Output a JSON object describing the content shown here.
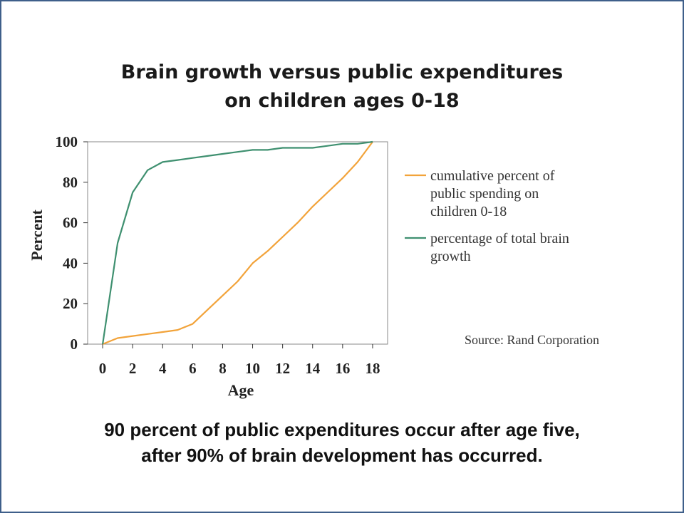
{
  "title_line1": "Brain growth versus public expenditures",
  "title_line2": "on children ages 0-18",
  "source": "Source: Rand Corporation",
  "footer_line1": "90 percent of  public expenditures occur after age five,",
  "footer_line2": "after 90% of brain development has occurred.",
  "chart_data": {
    "type": "line",
    "xlabel": "Age",
    "ylabel": "Percent",
    "xlim": [
      -1,
      19
    ],
    "ylim": [
      0,
      100
    ],
    "xticks": [
      0,
      2,
      4,
      6,
      8,
      10,
      12,
      14,
      16,
      18
    ],
    "yticks": [
      0,
      20,
      40,
      60,
      80,
      100
    ],
    "grid": false,
    "legend_position": "right",
    "series": [
      {
        "name": "cumulative percent of public spending on children 0-18",
        "legend_lines": [
          "cumulative percent of",
          "public spending on",
          "children 0-18"
        ],
        "color": "#f2a33a",
        "x": [
          0,
          1,
          2,
          3,
          4,
          5,
          6,
          7,
          8,
          9,
          10,
          11,
          12,
          13,
          14,
          15,
          16,
          17,
          18
        ],
        "y": [
          0,
          3,
          4,
          5,
          6,
          7,
          10,
          17,
          24,
          31,
          40,
          46,
          53,
          60,
          68,
          75,
          82,
          90,
          100
        ]
      },
      {
        "name": "percentage of total brain growth",
        "legend_lines": [
          "percentage of total brain",
          "growth"
        ],
        "color": "#3f9070",
        "x": [
          0,
          1,
          2,
          3,
          4,
          5,
          6,
          7,
          8,
          9,
          10,
          11,
          12,
          13,
          14,
          15,
          16,
          17,
          18
        ],
        "y": [
          0,
          50,
          75,
          86,
          90,
          91,
          92,
          93,
          94,
          95,
          96,
          96,
          97,
          97,
          97,
          98,
          99,
          99,
          100
        ]
      }
    ]
  }
}
